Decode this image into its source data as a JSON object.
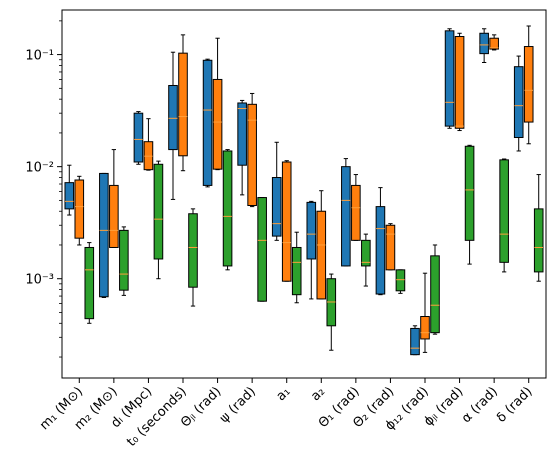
{
  "chart_data": {
    "type": "box",
    "title": "",
    "xlabel": "",
    "ylabel": "",
    "yscale": "log",
    "ylim": [
      0.00013,
      0.25
    ],
    "y_ticks": [
      0.001,
      0.01,
      0.1
    ],
    "y_tick_labels": [
      "10⁻³",
      "10⁻²",
      "10⁻¹"
    ],
    "grid": false,
    "legend": "none",
    "categories": [
      "m₁ (M⊙)",
      "m₂ (M⊙)",
      "dₗ (Mpc)",
      "t₀ (seconds)",
      "Θⱼₗ (rad)",
      "ψ (rad)",
      "a₁",
      "a₂",
      "Θ₁ (rad)",
      "Θ₂ (rad)",
      "ϕ₁₂ (rad)",
      "ϕⱼₗ (rad)",
      "α (rad)",
      "δ (rad)"
    ],
    "series": [
      {
        "color": "#1f77b4",
        "boxes": [
          {
            "whislo": 0.0037,
            "q1": 0.0042,
            "med": 0.0049,
            "q3": 0.0072,
            "whishi": 0.0103
          },
          {
            "whislo": 0.00068,
            "q1": 0.00069,
            "med": 0.0027,
            "q3": 0.0087,
            "whishi": 0.0087
          },
          {
            "whislo": 0.0105,
            "q1": 0.011,
            "med": 0.0175,
            "q3": 0.03,
            "whishi": 0.031
          },
          {
            "whislo": 0.0051,
            "q1": 0.0142,
            "med": 0.027,
            "q3": 0.053,
            "whishi": 0.105
          },
          {
            "whislo": 0.0066,
            "q1": 0.0068,
            "med": 0.032,
            "q3": 0.089,
            "whishi": 0.091
          },
          {
            "whislo": 0.0056,
            "q1": 0.0103,
            "med": 0.033,
            "q3": 0.037,
            "whishi": 0.039
          },
          {
            "whislo": 0.0022,
            "q1": 0.0024,
            "med": 0.0031,
            "q3": 0.008,
            "whishi": 0.0165
          },
          {
            "whislo": 0.00066,
            "q1": 0.0015,
            "med": 0.0025,
            "q3": 0.0048,
            "whishi": 0.0049
          },
          {
            "whislo": 0.0013,
            "q1": 0.0013,
            "med": 0.005,
            "q3": 0.01,
            "whishi": 0.0118
          },
          {
            "whislo": 0.00072,
            "q1": 0.00073,
            "med": 0.0028,
            "q3": 0.0044,
            "whishi": 0.0065
          },
          {
            "whislo": 0.00021,
            "q1": 0.00021,
            "med": 0.00024,
            "q3": 0.00036,
            "whishi": 0.00038
          },
          {
            "whislo": 0.022,
            "q1": 0.023,
            "med": 0.0375,
            "q3": 0.163,
            "whishi": 0.17
          },
          {
            "whislo": 0.085,
            "q1": 0.102,
            "med": 0.122,
            "q3": 0.155,
            "whishi": 0.17
          },
          {
            "whislo": 0.0138,
            "q1": 0.0182,
            "med": 0.035,
            "q3": 0.078,
            "whishi": 0.097
          }
        ]
      },
      {
        "color": "#ff7f0e",
        "boxes": [
          {
            "whislo": 0.002,
            "q1": 0.0023,
            "med": 0.0044,
            "q3": 0.0076,
            "whishi": 0.0082
          },
          {
            "whislo": 0.0019,
            "q1": 0.0019,
            "med": 0.0027,
            "q3": 0.0068,
            "whishi": 0.0142
          },
          {
            "whislo": 0.0093,
            "q1": 0.0094,
            "med": 0.0124,
            "q3": 0.0167,
            "whishi": 0.0268
          },
          {
            "whislo": 0.0092,
            "q1": 0.0125,
            "med": 0.028,
            "q3": 0.103,
            "whishi": 0.15
          },
          {
            "whislo": 0.0094,
            "q1": 0.0095,
            "med": 0.025,
            "q3": 0.06,
            "whishi": 0.14
          },
          {
            "whislo": 0.0044,
            "q1": 0.0045,
            "med": 0.026,
            "q3": 0.036,
            "whishi": 0.045
          },
          {
            "whislo": 0.00095,
            "q1": 0.00095,
            "med": 0.0021,
            "q3": 0.011,
            "whishi": 0.0113
          },
          {
            "whislo": 0.00066,
            "q1": 0.00066,
            "med": 0.002,
            "q3": 0.004,
            "whishi": 0.0061
          },
          {
            "whislo": 0.0022,
            "q1": 0.0022,
            "med": 0.0043,
            "q3": 0.0068,
            "whishi": 0.0085
          },
          {
            "whislo": 0.0012,
            "q1": 0.0012,
            "med": 0.0025,
            "q3": 0.003,
            "whishi": 0.0031
          },
          {
            "whislo": 0.00022,
            "q1": 0.00029,
            "med": 0.00033,
            "q3": 0.00046,
            "whishi": 0.00112
          },
          {
            "whislo": 0.021,
            "q1": 0.022,
            "med": 0.023,
            "q3": 0.145,
            "whishi": 0.155
          },
          {
            "whislo": 0.11,
            "q1": 0.112,
            "med": 0.115,
            "q3": 0.14,
            "whishi": 0.15
          },
          {
            "whislo": 0.016,
            "q1": 0.025,
            "med": 0.048,
            "q3": 0.118,
            "whishi": 0.18
          }
        ]
      },
      {
        "color": "#2ca02c",
        "boxes": [
          {
            "whislo": 0.0004,
            "q1": 0.00044,
            "med": 0.0012,
            "q3": 0.0019,
            "whishi": 0.0021
          },
          {
            "whislo": 0.00071,
            "q1": 0.00079,
            "med": 0.0011,
            "q3": 0.0027,
            "whishi": 0.0029
          },
          {
            "whislo": 0.001,
            "q1": 0.0015,
            "med": 0.0034,
            "q3": 0.0105,
            "whishi": 0.0112
          },
          {
            "whislo": 0.00057,
            "q1": 0.00084,
            "med": 0.0019,
            "q3": 0.0038,
            "whishi": 0.0042
          },
          {
            "whislo": 0.0012,
            "q1": 0.0013,
            "med": 0.0036,
            "q3": 0.0138,
            "whishi": 0.0142
          },
          {
            "whislo": 0.00063,
            "q1": 0.00063,
            "med": 0.0022,
            "q3": 0.0053,
            "whishi": 0.0053
          },
          {
            "whislo": 0.00061,
            "q1": 0.00072,
            "med": 0.0014,
            "q3": 0.0019,
            "whishi": 0.0026
          },
          {
            "whislo": 0.00023,
            "q1": 0.00038,
            "med": 0.00062,
            "q3": 0.001,
            "whishi": 0.0011
          },
          {
            "whislo": 0.00086,
            "q1": 0.0013,
            "med": 0.0014,
            "q3": 0.0022,
            "whishi": 0.0025
          },
          {
            "whislo": 0.00074,
            "q1": 0.00078,
            "med": 0.00098,
            "q3": 0.0012,
            "whishi": 0.0012
          },
          {
            "whislo": 0.00032,
            "q1": 0.00033,
            "med": 0.00058,
            "q3": 0.0016,
            "whishi": 0.002
          },
          {
            "whislo": 0.00135,
            "q1": 0.0022,
            "med": 0.0062,
            "q3": 0.0152,
            "whishi": 0.0155
          },
          {
            "whislo": 0.00115,
            "q1": 0.0014,
            "med": 0.0025,
            "q3": 0.0115,
            "whishi": 0.0117
          },
          {
            "whislo": 0.00095,
            "q1": 0.00115,
            "med": 0.0019,
            "q3": 0.0042,
            "whishi": 0.0085
          }
        ]
      }
    ],
    "median_color": "#ff9f3a"
  }
}
